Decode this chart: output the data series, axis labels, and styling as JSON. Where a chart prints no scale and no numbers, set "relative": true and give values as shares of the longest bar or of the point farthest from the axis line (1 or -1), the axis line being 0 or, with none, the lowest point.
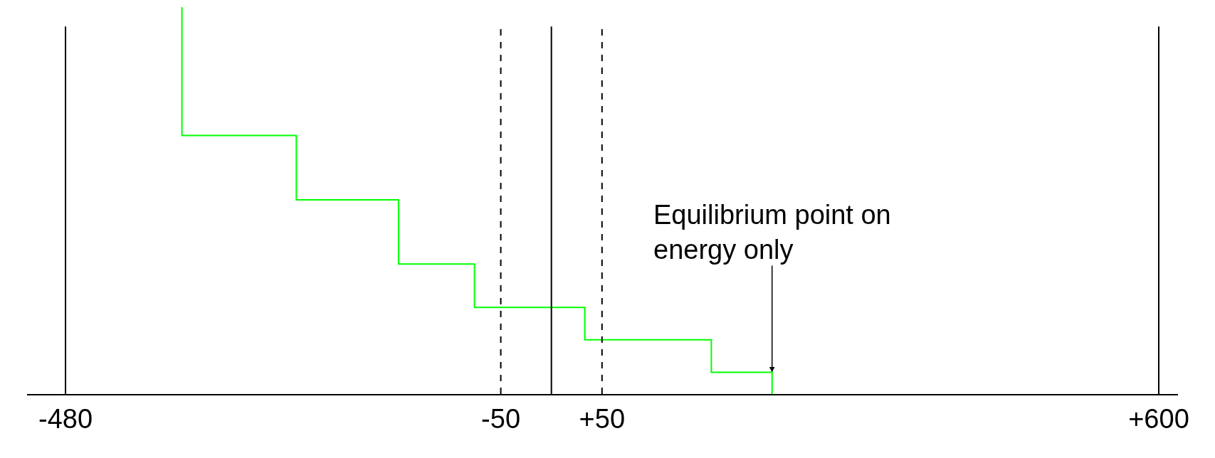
{
  "chart_data": {
    "type": "step",
    "relative": true,
    "x": [
      -365,
      -252,
      -151,
      -76,
      33,
      158,
      218,
      218
    ],
    "series": [
      {
        "color": "#00ff00",
        "values": [
          1,
          0.668,
          0.502,
          0.336,
          0.224,
          0.14,
          0.056,
          0
        ]
      }
    ],
    "xlim": [
      -518,
      619
    ],
    "xticks": [
      -480,
      {
        "value": -50,
        "label": "-50"
      },
      {
        "value": 50,
        "label": "+50"
      },
      {
        "value": 600,
        "label": "+600"
      }
    ],
    "ref_lines": [
      {
        "axis": "x",
        "value": -480,
        "color": "#000000",
        "line_style": "solid"
      },
      {
        "axis": "x",
        "value": -50,
        "color": "#000000",
        "line_style": "dashed"
      },
      {
        "axis": "x",
        "value": 0,
        "color": "#000000",
        "line_style": "solid"
      },
      {
        "axis": "x",
        "value": 50,
        "color": "#000000",
        "line_style": "dashed"
      },
      {
        "axis": "x",
        "value": 600,
        "color": "#000000",
        "line_style": "solid"
      }
    ],
    "annotations": [
      {
        "text": "Equilibrium point on\nenergy only",
        "x": 218,
        "y": 0.056
      }
    ]
  }
}
